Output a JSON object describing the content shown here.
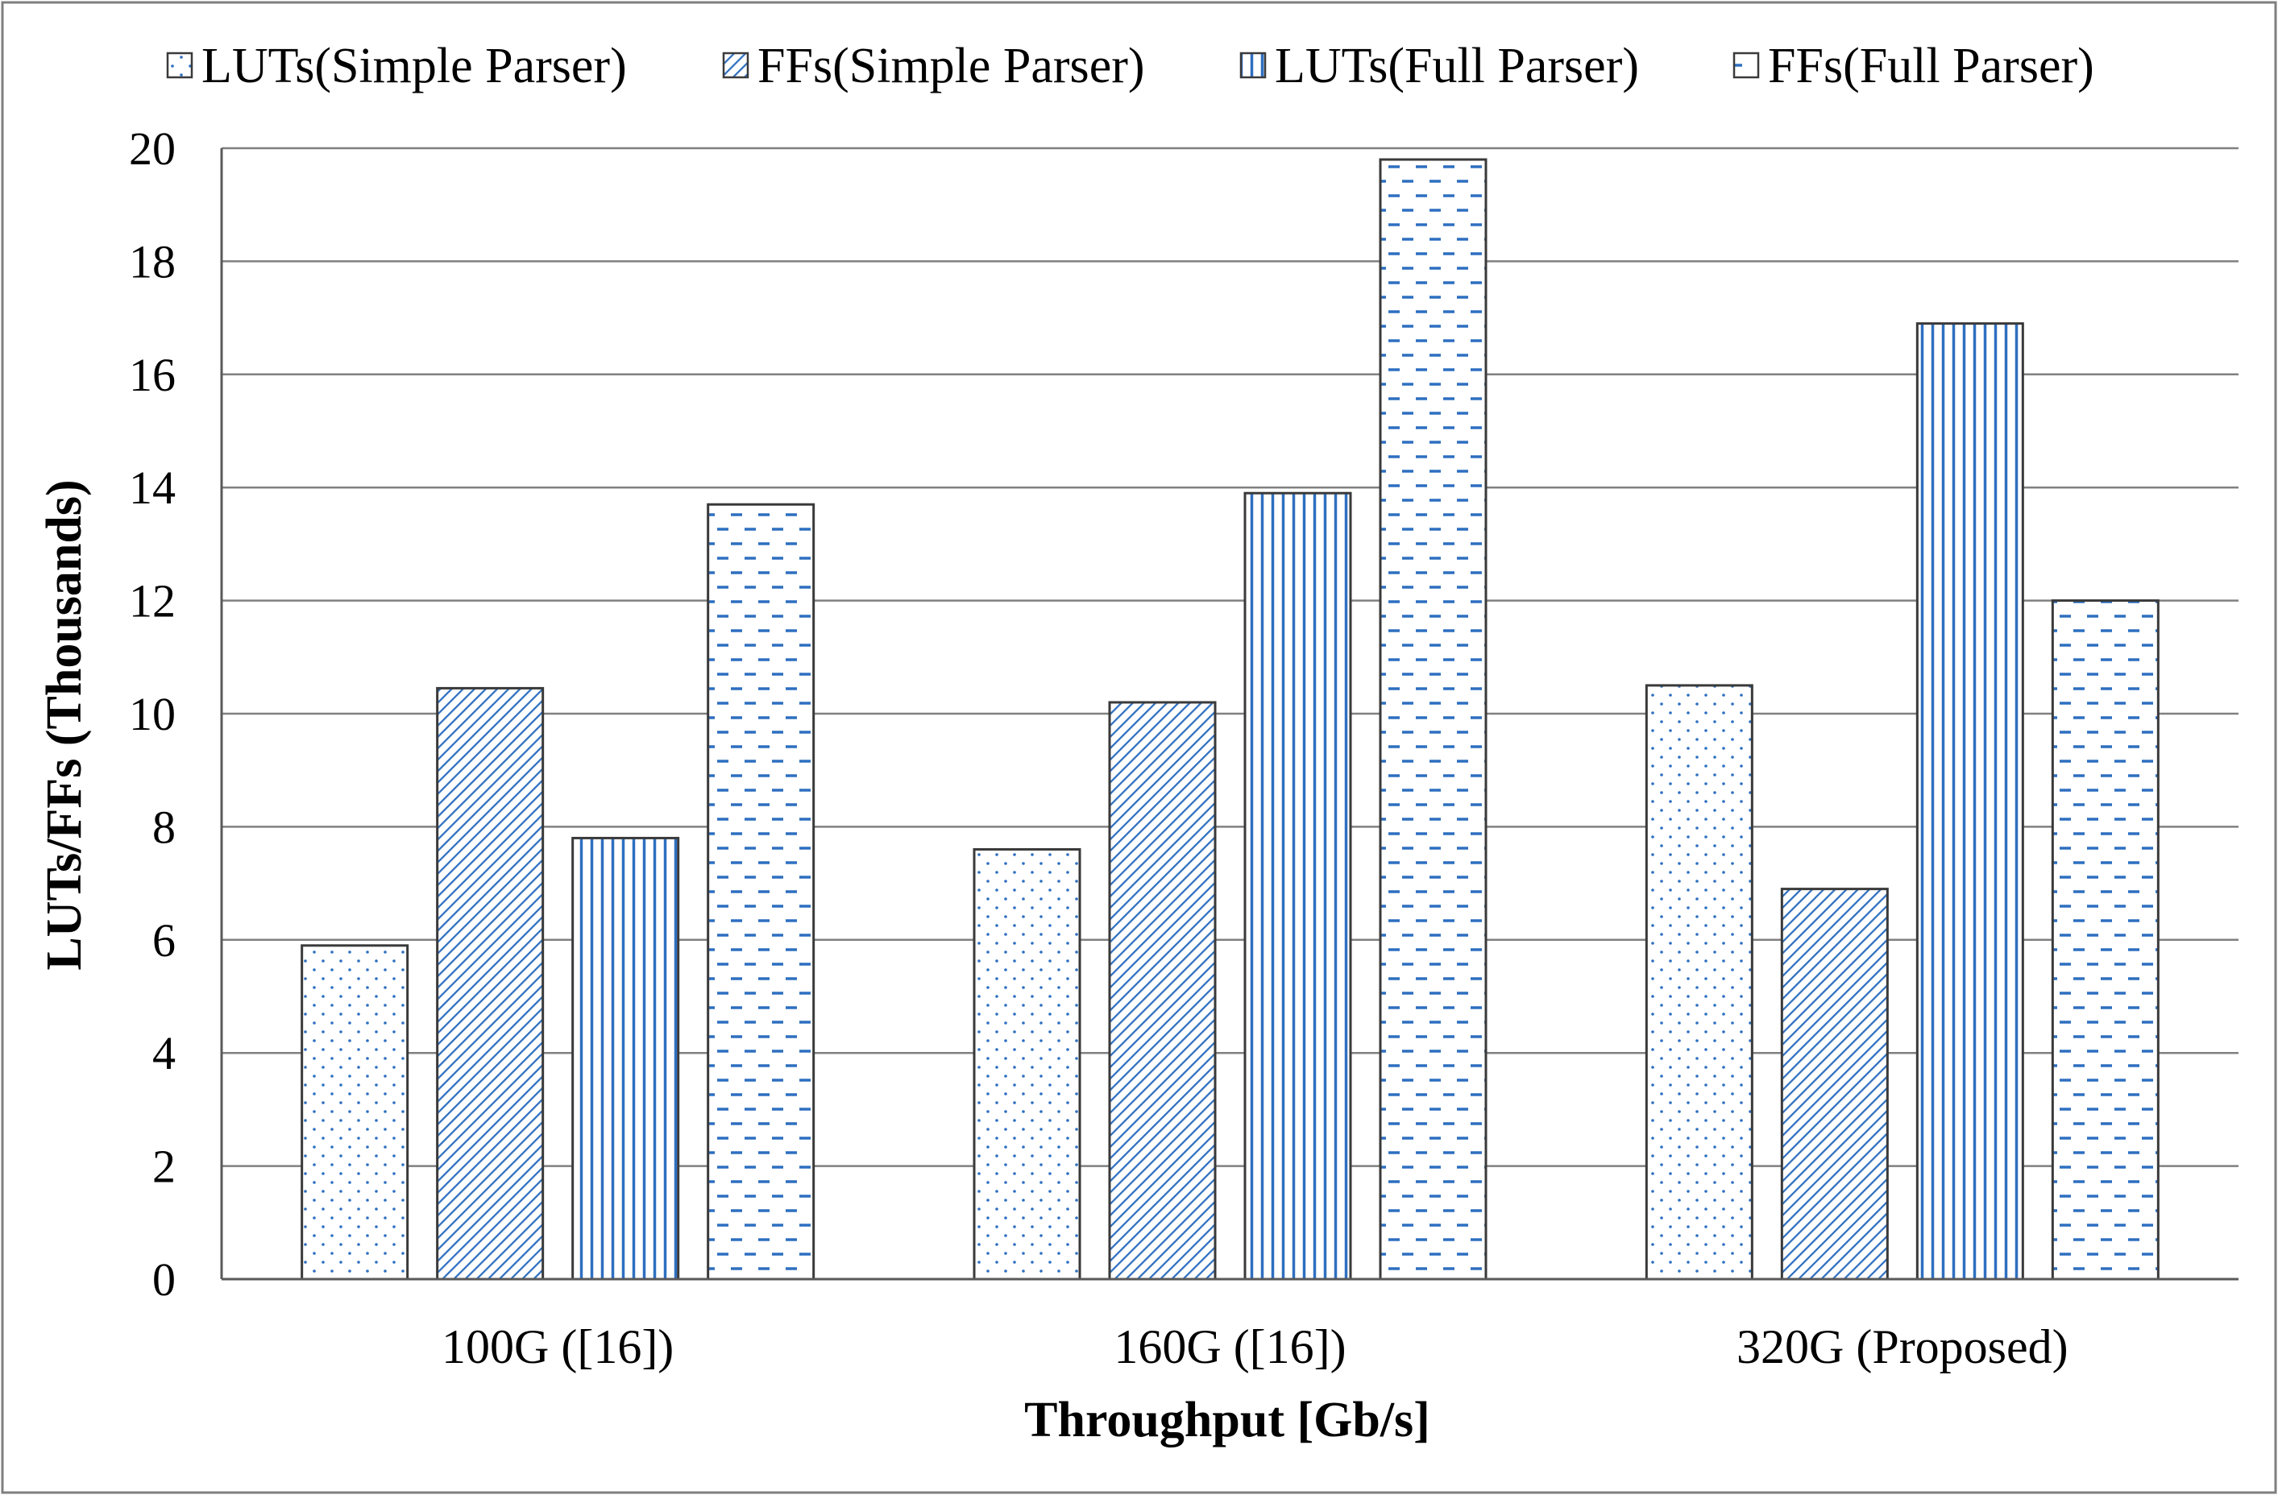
{
  "chart_data": {
    "type": "bar",
    "title": "",
    "xlabel": "Throughput [Gb/s]",
    "ylabel": "LUTs/FFs (Thousands)",
    "ylim": [
      0,
      20
    ],
    "yticks": [
      "0",
      "2",
      "4",
      "6",
      "8",
      "10",
      "12",
      "14",
      "16",
      "18",
      "20"
    ],
    "grid": true,
    "legend_position": "top",
    "categories": [
      "100G ([16])",
      "160G ([16])",
      "320G (Proposed)"
    ],
    "series": [
      {
        "name": "LUTs(Simple Parser)",
        "values": [
          5.9,
          7.6,
          10.5
        ],
        "pattern": "dots"
      },
      {
        "name": "FFs(Simple Parser)",
        "values": [
          10.45,
          10.2,
          6.9
        ],
        "pattern": "diagonal"
      },
      {
        "name": "LUTs(Full Parser)",
        "values": [
          7.8,
          13.9,
          16.9
        ],
        "pattern": "vertical"
      },
      {
        "name": "FFs(Full Parser)",
        "values": [
          13.7,
          19.8,
          12.0
        ],
        "pattern": "dashes"
      }
    ],
    "colors": {
      "pattern": "#2e6fc0",
      "bar_edge": "#3a3a3a",
      "grid": "#808080",
      "frame": "#7f7f7f"
    }
  }
}
